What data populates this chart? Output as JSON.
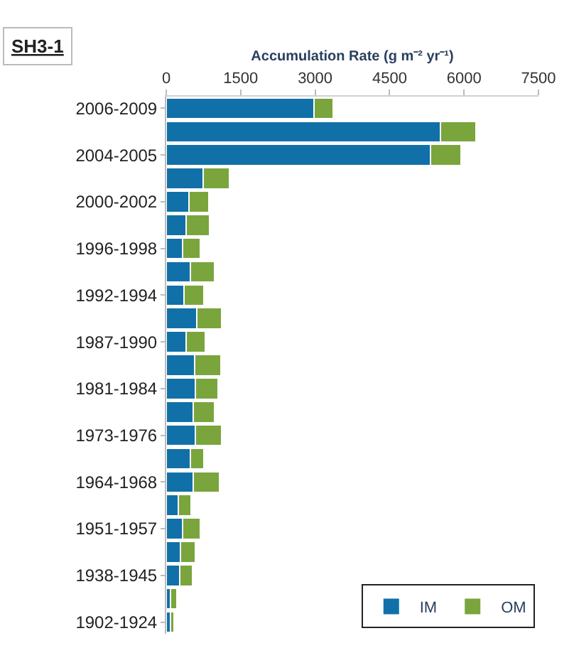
{
  "chart_data": {
    "type": "bar",
    "orientation": "horizontal",
    "stacked": true,
    "title": "SH3-1",
    "xlabel": "Accumulation Rate (g m⁻² yr⁻¹)",
    "categories": [
      "2006-2009",
      null,
      "2004-2005",
      null,
      "2000-2002",
      null,
      "1996-1998",
      null,
      "1992-1994",
      null,
      "1987-1990",
      null,
      "1981-1984",
      null,
      "1973-1976",
      null,
      "1964-1968",
      null,
      "1951-1957",
      null,
      "1938-1945",
      null,
      "1902-1924"
    ],
    "series": [
      {
        "name": "IM",
        "color": "#1170a8",
        "values": [
          2980,
          5530,
          5320,
          740,
          460,
          400,
          330,
          480,
          360,
          620,
          400,
          570,
          590,
          550,
          590,
          480,
          550,
          240,
          330,
          290,
          270,
          80,
          80
        ]
      },
      {
        "name": "OM",
        "color": "#7aa53c",
        "values": [
          380,
          710,
          620,
          530,
          400,
          480,
          360,
          500,
          400,
          500,
          390,
          530,
          460,
          430,
          530,
          280,
          530,
          260,
          360,
          290,
          260,
          140,
          80
        ]
      }
    ],
    "xlim": [
      0,
      7500
    ],
    "xticks": [
      0,
      1500,
      3000,
      4500,
      6000,
      7500
    ],
    "legend": "bottom right"
  }
}
